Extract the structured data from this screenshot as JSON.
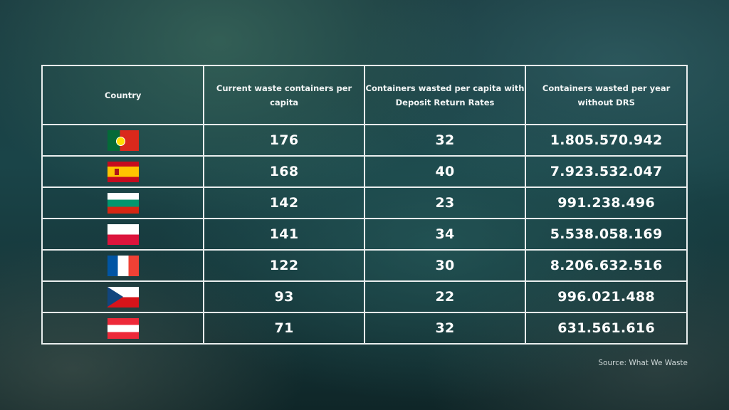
{
  "chart_data": {
    "type": "table",
    "columns": [
      "Country",
      "Current waste containers per capita",
      "Containers wasted per capita with Deposit Return Rates",
      "Containers wasted per year without DRS"
    ],
    "rows": [
      {
        "flag_icon": "portugal-flag-icon",
        "values": [
          "176",
          "32",
          "1.805.570.942"
        ]
      },
      {
        "flag_icon": "spain-flag-icon",
        "values": [
          "168",
          "40",
          "7.923.532.047"
        ]
      },
      {
        "flag_icon": "bulgaria-flag-icon",
        "values": [
          "142",
          "23",
          "991.238.496"
        ]
      },
      {
        "flag_icon": "poland-flag-icon",
        "values": [
          "141",
          "34",
          "5.538.058.169"
        ]
      },
      {
        "flag_icon": "france-flag-icon",
        "values": [
          "122",
          "30",
          "8.206.632.516"
        ]
      },
      {
        "flag_icon": "czech-republic-flag-icon",
        "values": [
          "93",
          "22",
          "996.021.488"
        ]
      },
      {
        "flag_icon": "austria-flag-icon",
        "values": [
          "71",
          "32",
          "631.561.616"
        ]
      }
    ]
  },
  "source": "Source: What We Waste",
  "colors": {
    "background": "#1a4448",
    "grid": "#e9eeee",
    "text": "#ffffff"
  }
}
